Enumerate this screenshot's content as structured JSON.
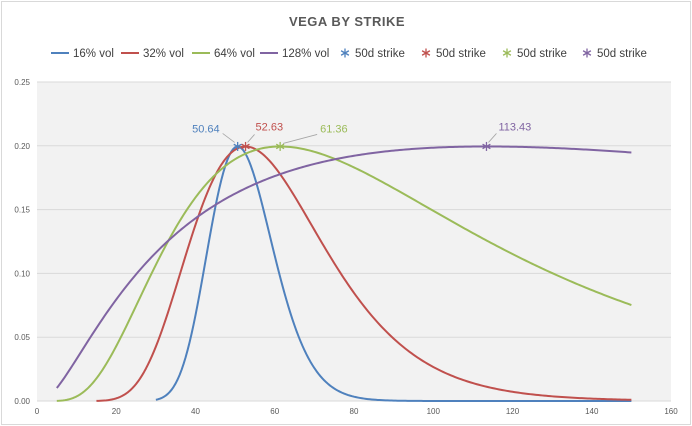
{
  "chart_data": {
    "type": "line",
    "title": "VEGA BY STRIKE",
    "xlabel": "",
    "ylabel": "",
    "xlim": [
      0,
      160
    ],
    "ylim": [
      0,
      0.25
    ],
    "xticks": [
      0,
      20,
      40,
      60,
      80,
      100,
      120,
      140,
      160
    ],
    "yticks": [
      0.0,
      0.05,
      0.1,
      0.15,
      0.2,
      0.25
    ],
    "xtick_labels": [
      "0",
      "20",
      "40",
      "60",
      "80",
      "100",
      "120",
      "140",
      "160"
    ],
    "ytick_labels": [
      "0.00",
      "0.05",
      "0.10",
      "0.15",
      "0.20",
      "0.25"
    ],
    "grid": "horizontal",
    "legend_position": "top",
    "series": [
      {
        "name": "16% vol",
        "color": "#4f81bd",
        "forward": 50,
        "vol": 0.16,
        "x_range": [
          30,
          150
        ]
      },
      {
        "name": "32% vol",
        "color": "#c0504d",
        "forward": 50,
        "vol": 0.32,
        "x_range": [
          15,
          150
        ]
      },
      {
        "name": "64% vol",
        "color": "#9bbb59",
        "forward": 50,
        "vol": 0.64,
        "x_range": [
          5,
          150
        ]
      },
      {
        "name": "128% vol",
        "color": "#8064a2",
        "forward": 50,
        "vol": 1.28,
        "x_range": [
          5,
          150
        ]
      }
    ],
    "markers": [
      {
        "name": "50d strike",
        "color": "#4f81bd",
        "x": 50.64,
        "y": 0.1995,
        "label": "50.64"
      },
      {
        "name": "50d strike",
        "color": "#c0504d",
        "x": 52.63,
        "y": 0.1995,
        "label": "52.63"
      },
      {
        "name": "50d strike",
        "color": "#9bbb59",
        "x": 61.36,
        "y": 0.1995,
        "label": "61.36"
      },
      {
        "name": "50d strike",
        "color": "#8064a2",
        "x": 113.43,
        "y": 0.1995,
        "label": "113.43"
      }
    ]
  }
}
